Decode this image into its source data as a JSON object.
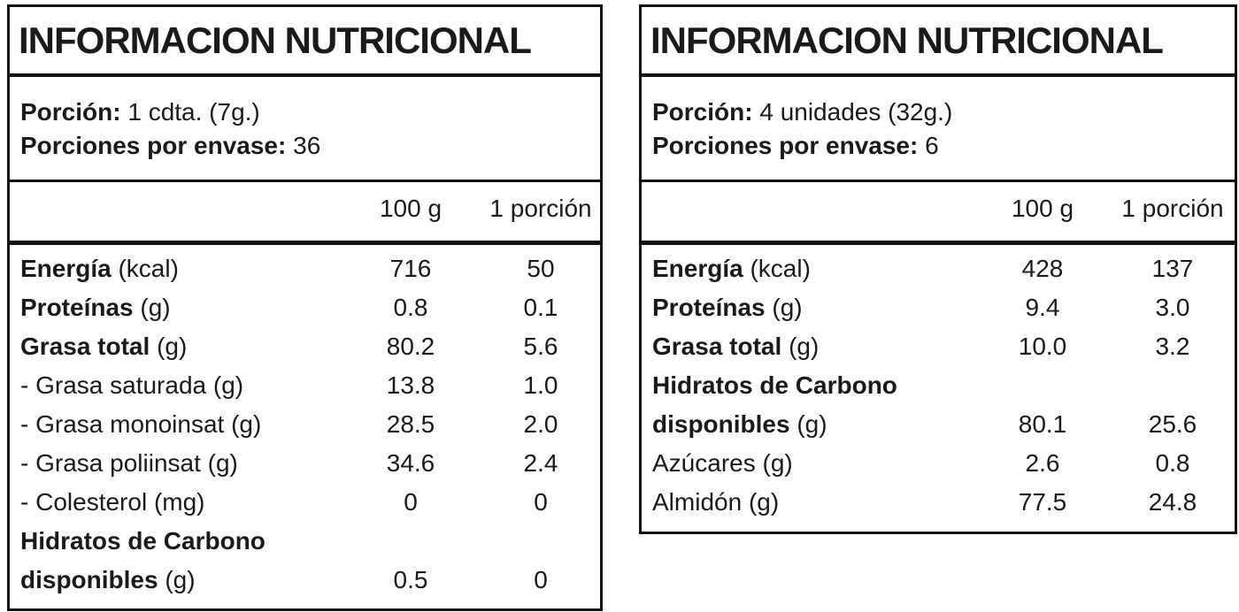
{
  "panels": [
    {
      "title": "INFORMACION NUTRICIONAL",
      "serving_label": "Porción:",
      "serving": "1 cdta. (7g.)",
      "servings_label": "Porciones por envase:",
      "servings": "36",
      "columns": [
        "100 g",
        "1 porción"
      ],
      "rows": [
        {
          "bold": "Energía",
          "unit": "(kcal)",
          "values": [
            "716",
            "50"
          ]
        },
        {
          "bold": "Proteínas",
          "unit": "(g)",
          "values": [
            "0.8",
            "0.1"
          ]
        },
        {
          "bold": "Grasa total",
          "unit": "(g)",
          "values": [
            "80.2",
            "5.6"
          ]
        },
        {
          "text": "- Grasa saturada (g)",
          "values": [
            "13.8",
            "1.0"
          ]
        },
        {
          "text": "- Grasa monoinsat (g)",
          "values": [
            "28.5",
            "2.0"
          ]
        },
        {
          "text": "- Grasa poliinsat (g)",
          "values": [
            "34.6",
            "2.4"
          ]
        },
        {
          "text": "- Colesterol (mg)",
          "values": [
            "0",
            "0"
          ]
        },
        {
          "bold_lines": [
            "Hidratos de Carbono",
            "disponibles"
          ],
          "unit": "(g)",
          "values": [
            "0.5",
            "0"
          ]
        }
      ]
    },
    {
      "title": "INFORMACION NUTRICIONAL",
      "serving_label": "Porción:",
      "serving": "4 unidades (32g.)",
      "servings_label": "Porciones por envase:",
      "servings": "6",
      "columns": [
        "100 g",
        "1 porción"
      ],
      "rows": [
        {
          "bold": "Energía",
          "unit": "(kcal)",
          "values": [
            "428",
            "137"
          ]
        },
        {
          "bold": "Proteínas",
          "unit": "(g)",
          "values": [
            "9.4",
            "3.0"
          ]
        },
        {
          "bold": "Grasa total",
          "unit": "(g)",
          "values": [
            "10.0",
            "3.2"
          ]
        },
        {
          "bold_lines": [
            "Hidratos de Carbono",
            "disponibles"
          ],
          "unit": "(g)",
          "values": [
            "80.1",
            "25.6"
          ]
        },
        {
          "text": "Azúcares (g)",
          "values": [
            "2.6",
            "0.8"
          ]
        },
        {
          "text": "Almidón (g)",
          "values": [
            "77.5",
            "24.8"
          ]
        }
      ]
    }
  ]
}
